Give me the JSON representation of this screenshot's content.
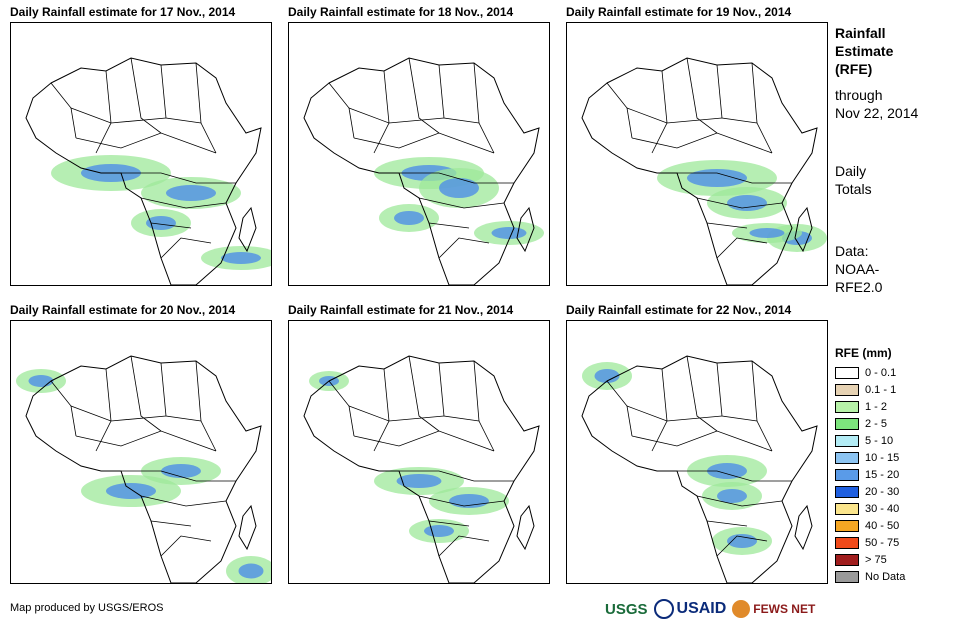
{
  "panels": [
    {
      "title": "Daily Rainfall estimate for 17 Nov., 2014"
    },
    {
      "title": "Daily Rainfall estimate for 18 Nov., 2014"
    },
    {
      "title": "Daily Rainfall estimate for 19 Nov., 2014"
    },
    {
      "title": "Daily Rainfall estimate for 20 Nov., 2014"
    },
    {
      "title": "Daily Rainfall estimate for 21 Nov., 2014"
    },
    {
      "title": "Daily Rainfall estimate for 22 Nov., 2014"
    }
  ],
  "side": {
    "title1": "Rainfall",
    "title2": "Estimate",
    "title3": "(RFE)",
    "through1": "through",
    "through2": "Nov 22, 2014",
    "daily1": "Daily",
    "daily2": "Totals",
    "data1": "Data:",
    "data2": "NOAA-",
    "data3": "RFE2.0"
  },
  "legend": {
    "title": "RFE (mm)",
    "items": [
      {
        "label": "0 - 0.1",
        "color": "#ffffff"
      },
      {
        "label": "0.1 - 1",
        "color": "#e6d2b3"
      },
      {
        "label": "1 - 2",
        "color": "#b7f2a8"
      },
      {
        "label": "2 - 5",
        "color": "#7de57d"
      },
      {
        "label": "5 - 10",
        "color": "#b3ecf5"
      },
      {
        "label": "10 - 15",
        "color": "#8cc4f2"
      },
      {
        "label": "15 - 20",
        "color": "#5a9be8"
      },
      {
        "label": "20 - 30",
        "color": "#1f5fe0"
      },
      {
        "label": "30 - 40",
        "color": "#fbe58c"
      },
      {
        "label": "40 - 50",
        "color": "#f5a623"
      },
      {
        "label": "50 - 75",
        "color": "#f04a1a"
      },
      {
        "label": "> 75",
        "color": "#a01d1d"
      },
      {
        "label": "No Data",
        "color": "#9a9a9a"
      }
    ]
  },
  "credit": "Map produced by USGS/EROS",
  "logos": {
    "usgs": "USGS",
    "usaid": "USAID",
    "fews": "FEWS NET"
  }
}
